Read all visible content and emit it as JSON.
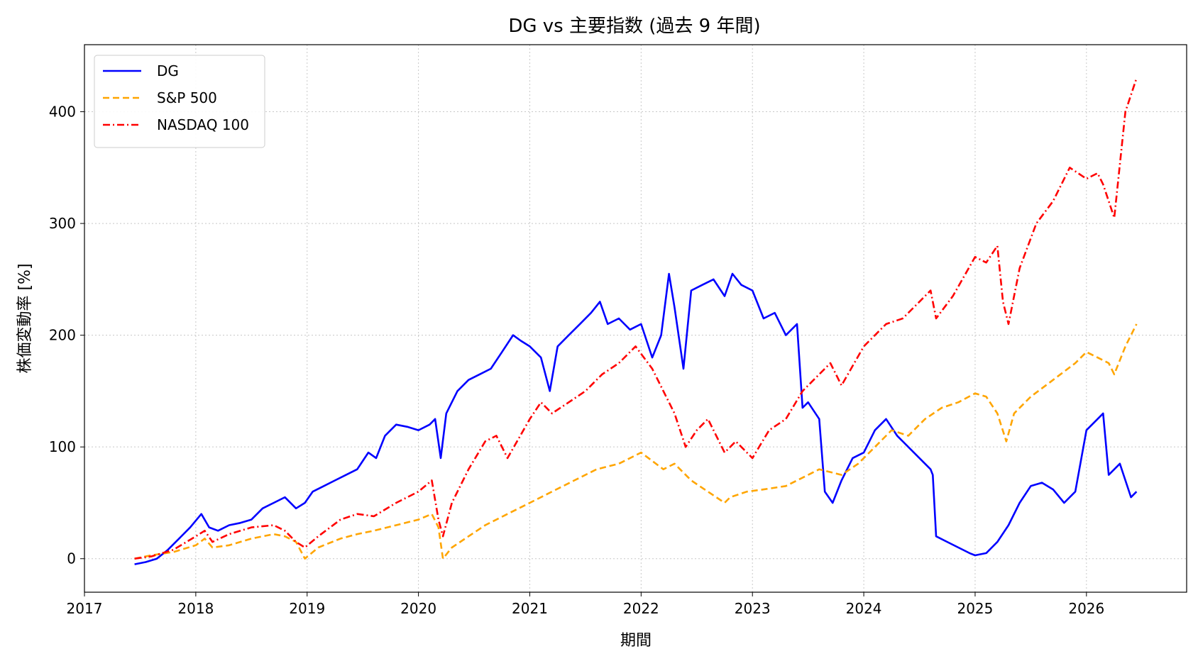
{
  "chart_data": {
    "type": "line",
    "title": "DG vs 主要指数 (過去 9 年間)",
    "xlabel": "期間",
    "ylabel": "株価変動率 [%]",
    "xlim": [
      2017.0,
      2026.9
    ],
    "ylim": [
      -30,
      460
    ],
    "x_ticks": [
      2017,
      2018,
      2019,
      2020,
      2021,
      2022,
      2023,
      2024,
      2025,
      2026
    ],
    "y_ticks": [
      0,
      100,
      200,
      300,
      400
    ],
    "grid": true,
    "legend_position": "top-left",
    "series": [
      {
        "name": "DG",
        "color": "#0000ff",
        "dash": "solid",
        "x": [
          2017.45,
          2017.55,
          2017.65,
          2017.75,
          2017.85,
          2017.95,
          2018.05,
          2018.12,
          2018.2,
          2018.3,
          2018.4,
          2018.5,
          2018.6,
          2018.7,
          2018.8,
          2018.9,
          2018.98,
          2019.05,
          2019.15,
          2019.25,
          2019.35,
          2019.45,
          2019.55,
          2019.62,
          2019.7,
          2019.8,
          2019.9,
          2020.0,
          2020.1,
          2020.15,
          2020.2,
          2020.25,
          2020.35,
          2020.45,
          2020.55,
          2020.65,
          2020.75,
          2020.85,
          2020.92,
          2021.0,
          2021.1,
          2021.18,
          2021.25,
          2021.35,
          2021.45,
          2021.55,
          2021.63,
          2021.7,
          2021.8,
          2021.9,
          2022.0,
          2022.1,
          2022.18,
          2022.25,
          2022.3,
          2022.38,
          2022.45,
          2022.55,
          2022.65,
          2022.75,
          2022.82,
          2022.9,
          2023.0,
          2023.1,
          2023.2,
          2023.3,
          2023.4,
          2023.45,
          2023.5,
          2023.6,
          2023.65,
          2023.72,
          2023.8,
          2023.9,
          2024.0,
          2024.1,
          2024.2,
          2024.3,
          2024.4,
          2024.5,
          2024.6,
          2024.62,
          2024.65,
          2024.75,
          2024.85,
          2024.95,
          2025.0,
          2025.1,
          2025.2,
          2025.3,
          2025.4,
          2025.5,
          2025.6,
          2025.7,
          2025.8,
          2025.9,
          2026.0,
          2026.1,
          2026.15,
          2026.2,
          2026.3,
          2026.4,
          2026.45
        ],
        "y": [
          -5,
          -3,
          0,
          8,
          18,
          28,
          40,
          28,
          25,
          30,
          32,
          35,
          45,
          50,
          55,
          45,
          50,
          60,
          65,
          70,
          75,
          80,
          95,
          90,
          110,
          120,
          118,
          115,
          120,
          125,
          90,
          130,
          150,
          160,
          165,
          170,
          185,
          200,
          195,
          190,
          180,
          150,
          190,
          200,
          210,
          220,
          230,
          210,
          215,
          205,
          210,
          180,
          200,
          255,
          225,
          170,
          240,
          245,
          250,
          235,
          255,
          245,
          240,
          215,
          220,
          200,
          210,
          135,
          140,
          125,
          60,
          50,
          70,
          90,
          95,
          115,
          125,
          110,
          100,
          90,
          80,
          75,
          20,
          15,
          10,
          5,
          3,
          5,
          15,
          30,
          50,
          65,
          68,
          62,
          50,
          60,
          115,
          125,
          130,
          75,
          85,
          55,
          60
        ]
      },
      {
        "name": "S&P 500",
        "color": "#ffa500",
        "dash": "dashed",
        "x": [
          2017.45,
          2017.6,
          2017.8,
          2018.0,
          2018.08,
          2018.15,
          2018.3,
          2018.5,
          2018.7,
          2018.8,
          2018.9,
          2018.98,
          2019.1,
          2019.3,
          2019.45,
          2019.6,
          2019.8,
          2020.0,
          2020.12,
          2020.18,
          2020.22,
          2020.3,
          2020.45,
          2020.6,
          2020.8,
          2021.0,
          2021.2,
          2021.4,
          2021.6,
          2021.8,
          2022.0,
          2022.2,
          2022.3,
          2022.45,
          2022.6,
          2022.75,
          2022.8,
          2022.95,
          2023.1,
          2023.3,
          2023.5,
          2023.6,
          2023.8,
          2023.95,
          2024.1,
          2024.25,
          2024.4,
          2024.55,
          2024.7,
          2024.85,
          2025.0,
          2025.1,
          2025.2,
          2025.28,
          2025.35,
          2025.5,
          2025.7,
          2025.9,
          2026.0,
          2026.1,
          2026.2,
          2026.25,
          2026.35,
          2026.45
        ],
        "y": [
          0,
          3,
          6,
          12,
          18,
          10,
          12,
          18,
          22,
          20,
          15,
          0,
          10,
          18,
          22,
          25,
          30,
          35,
          40,
          28,
          0,
          10,
          20,
          30,
          40,
          50,
          60,
          70,
          80,
          85,
          95,
          80,
          85,
          70,
          60,
          50,
          55,
          60,
          62,
          65,
          75,
          80,
          75,
          85,
          100,
          115,
          110,
          125,
          135,
          140,
          148,
          145,
          130,
          105,
          130,
          145,
          160,
          175,
          185,
          180,
          175,
          165,
          190,
          210
        ]
      },
      {
        "name": "NASDAQ 100",
        "color": "#ff0000",
        "dash": "dashdot",
        "x": [
          2017.45,
          2017.6,
          2017.8,
          2018.0,
          2018.08,
          2018.15,
          2018.3,
          2018.5,
          2018.7,
          2018.8,
          2018.9,
          2018.98,
          2019.1,
          2019.3,
          2019.45,
          2019.6,
          2019.8,
          2020.0,
          2020.12,
          2020.18,
          2020.22,
          2020.3,
          2020.45,
          2020.6,
          2020.7,
          2020.8,
          2021.0,
          2021.1,
          2021.2,
          2021.35,
          2021.5,
          2021.65,
          2021.8,
          2021.95,
          2022.1,
          2022.2,
          2022.3,
          2022.4,
          2022.5,
          2022.6,
          2022.75,
          2022.85,
          2023.0,
          2023.15,
          2023.3,
          2023.45,
          2023.6,
          2023.7,
          2023.8,
          2024.0,
          2024.2,
          2024.35,
          2024.5,
          2024.6,
          2024.65,
          2024.8,
          2025.0,
          2025.1,
          2025.2,
          2025.25,
          2025.3,
          2025.4,
          2025.55,
          2025.7,
          2025.85,
          2026.0,
          2026.1,
          2026.15,
          2026.2,
          2026.25,
          2026.35,
          2026.45
        ],
        "y": [
          0,
          2,
          8,
          20,
          25,
          15,
          22,
          28,
          30,
          25,
          15,
          10,
          20,
          35,
          40,
          38,
          50,
          60,
          70,
          35,
          20,
          50,
          80,
          105,
          110,
          90,
          125,
          140,
          130,
          140,
          150,
          165,
          175,
          190,
          170,
          150,
          130,
          100,
          115,
          125,
          95,
          105,
          90,
          115,
          125,
          150,
          165,
          175,
          155,
          190,
          210,
          215,
          230,
          240,
          215,
          235,
          270,
          265,
          280,
          230,
          210,
          260,
          300,
          320,
          350,
          340,
          345,
          335,
          320,
          305,
          400,
          430
        ]
      }
    ]
  }
}
